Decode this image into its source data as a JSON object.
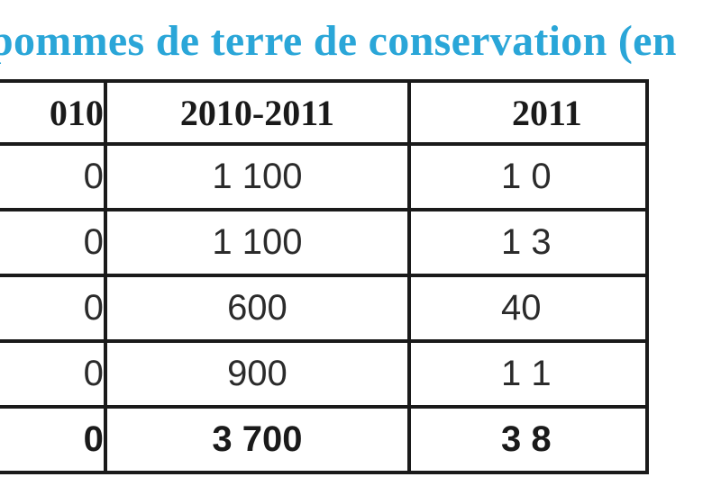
{
  "title": "pommes de terre de conservation (en",
  "table": {
    "headers": [
      "010",
      "2010-2011",
      "2011"
    ],
    "rows": [
      [
        "0",
        "1 100",
        "1 0"
      ],
      [
        "0",
        "1 100",
        "1 3"
      ],
      [
        "0",
        "600",
        "40"
      ],
      [
        "0",
        "900",
        "1 1"
      ]
    ],
    "total": [
      "0",
      "3 700",
      "3 8"
    ]
  }
}
